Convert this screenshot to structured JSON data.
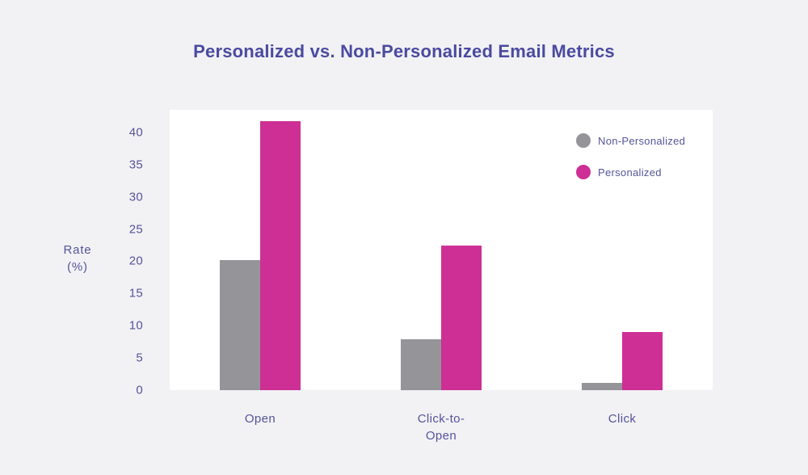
{
  "colors": {
    "background": "#f2f1f4",
    "plot_background": "#ffffff",
    "title_text": "#4b4aa0",
    "axis_text": "#55549a",
    "non_personalized": "#949499",
    "personalized": "#ce2f95"
  },
  "chart_data": {
    "type": "bar",
    "title": "Personalized vs. Non-Personalized Email Metrics",
    "categories": [
      "Open",
      "Click-to-Open",
      "Click"
    ],
    "series": [
      {
        "name": "Non-Personalized",
        "color": "#949499",
        "values": [
          20.2,
          7.9,
          1.1
        ]
      },
      {
        "name": "Personalized",
        "color": "#ce2f95",
        "values": [
          41.7,
          22.4,
          9.0
        ]
      }
    ],
    "ylabel": "Rate\n(%)",
    "yticks": [
      0,
      5,
      10,
      15,
      20,
      25,
      30,
      35,
      40
    ],
    "ylim": [
      0,
      43.5
    ],
    "grid": false,
    "legend_position": "top-right"
  }
}
